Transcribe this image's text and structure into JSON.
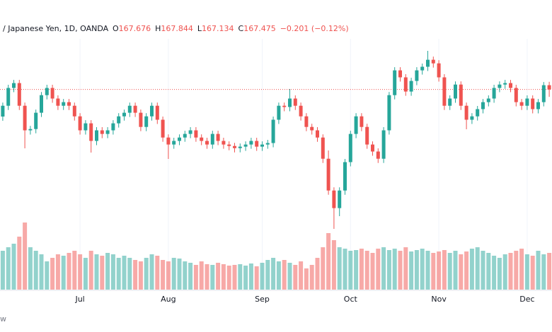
{
  "chart_data": {
    "type": "candlestick",
    "symbol": "/ Japanese Yen, 1D, OANDA",
    "ohlc_header": [
      {
        "label": "O",
        "value": "167.676"
      },
      {
        "label": "H",
        "value": "167.844"
      },
      {
        "label": "L",
        "value": "167.134"
      },
      {
        "label": "C",
        "value": "167.475"
      }
    ],
    "change": "−0.201 (−0.12%)",
    "footer_text": "w",
    "up_color": "#26a69a",
    "down_color": "#ef5350",
    "ylim": [
      160.5,
      170.0
    ],
    "volume_lim": [
      0,
      100
    ],
    "xlim": [
      -0.5,
      99.5
    ],
    "xticks": [
      {
        "value": 14,
        "label": "Jul"
      },
      {
        "value": 30,
        "label": "Aug"
      },
      {
        "value": 47,
        "label": "Sep"
      },
      {
        "value": 63,
        "label": "Oct"
      },
      {
        "value": 79,
        "label": "Nov"
      },
      {
        "value": 95,
        "label": "Dec"
      }
    ],
    "grid": true,
    "open": [
      166.2,
      166.71,
      167.55,
      167.78,
      166.71,
      165.55,
      165.61,
      166.38,
      167.21,
      167.55,
      167.05,
      166.71,
      166.88,
      166.71,
      166.21,
      165.55,
      165.88,
      165.05,
      165.55,
      165.38,
      165.55,
      165.88,
      166.21,
      166.38,
      166.71,
      166.38,
      165.71,
      166.21,
      166.71,
      166.05,
      165.21,
      164.88,
      165.05,
      165.21,
      165.38,
      165.55,
      165.21,
      165.05,
      164.88,
      165.38,
      165.05,
      164.88,
      164.81,
      164.71,
      164.78,
      164.88,
      165.05,
      164.78,
      164.88,
      164.95,
      166.05,
      166.71,
      166.65,
      167.05,
      166.71,
      166.21,
      165.71,
      165.55,
      165.21,
      164.21,
      162.71,
      161.88,
      162.71,
      164.05,
      165.38,
      166.21,
      165.71,
      164.88,
      164.55,
      164.21,
      165.55,
      167.21,
      168.38,
      168.05,
      167.38,
      167.88,
      168.38,
      168.55,
      168.88,
      168.71,
      168.05,
      166.71,
      167.05,
      167.71,
      166.71,
      166.05,
      166.21,
      166.55,
      166.88,
      167.05,
      167.55,
      167.71,
      167.78,
      167.55,
      166.88,
      166.71,
      167.05,
      166.55,
      166.88,
      167.68
    ],
    "high": [
      166.86,
      167.7,
      167.93,
      167.93,
      166.86,
      165.76,
      166.53,
      167.36,
      167.7,
      167.7,
      167.2,
      167.03,
      167.03,
      166.86,
      166.36,
      166.03,
      166.03,
      165.7,
      165.7,
      165.7,
      166.03,
      166.36,
      166.53,
      166.86,
      166.86,
      166.53,
      166.36,
      166.86,
      166.86,
      166.2,
      165.36,
      165.2,
      165.36,
      165.53,
      165.7,
      165.7,
      165.36,
      165.2,
      165.53,
      165.53,
      165.2,
      165.03,
      164.96,
      164.93,
      165.03,
      165.2,
      165.2,
      165.03,
      165.1,
      166.2,
      166.86,
      166.86,
      167.5,
      167.2,
      166.86,
      166.36,
      165.86,
      165.7,
      165.36,
      164.6,
      162.86,
      162.86,
      164.2,
      165.53,
      166.36,
      166.36,
      165.86,
      165.03,
      164.7,
      165.7,
      167.36,
      168.53,
      168.53,
      168.2,
      168.03,
      168.53,
      168.7,
      169.3,
      169.03,
      168.86,
      168.2,
      167.2,
      167.86,
      167.86,
      166.86,
      166.36,
      166.7,
      167.03,
      167.2,
      167.7,
      167.86,
      167.93,
      167.93,
      167.7,
      167.03,
      167.2,
      167.2,
      167.03,
      167.83,
      167.84
    ],
    "low": [
      166.0,
      166.51,
      167.35,
      166.51,
      164.7,
      165.35,
      165.41,
      166.18,
      167.01,
      166.85,
      166.51,
      166.51,
      166.51,
      166.01,
      165.35,
      165.35,
      164.5,
      164.85,
      165.18,
      165.18,
      165.35,
      165.68,
      166.01,
      166.18,
      166.18,
      165.51,
      165.51,
      166.01,
      165.85,
      165.01,
      164.2,
      164.68,
      164.85,
      165.01,
      165.18,
      165.01,
      164.85,
      164.68,
      164.68,
      164.85,
      164.68,
      164.61,
      164.51,
      164.51,
      164.58,
      164.68,
      164.58,
      164.58,
      164.68,
      164.75,
      165.85,
      166.45,
      166.45,
      166.51,
      166.01,
      165.51,
      165.35,
      165.01,
      164.01,
      162.51,
      160.9,
      161.5,
      162.51,
      163.85,
      165.18,
      165.51,
      164.68,
      164.35,
      164.01,
      164.01,
      165.35,
      167.01,
      167.85,
      167.18,
      167.18,
      167.68,
      168.18,
      168.35,
      168.51,
      167.85,
      166.51,
      166.51,
      166.85,
      166.51,
      165.6,
      165.85,
      166.01,
      166.35,
      166.68,
      166.85,
      167.35,
      167.51,
      167.35,
      166.68,
      166.51,
      166.51,
      166.35,
      166.35,
      166.68,
      167.13
    ],
    "close": [
      166.71,
      167.55,
      167.78,
      166.71,
      165.55,
      165.61,
      166.38,
      167.21,
      167.55,
      167.05,
      166.71,
      166.88,
      166.71,
      166.21,
      165.55,
      165.88,
      165.05,
      165.55,
      165.38,
      165.55,
      165.88,
      166.21,
      166.38,
      166.71,
      166.38,
      165.71,
      166.21,
      166.71,
      166.05,
      165.21,
      164.88,
      165.05,
      165.21,
      165.38,
      165.55,
      165.21,
      165.05,
      164.88,
      165.38,
      165.05,
      164.88,
      164.81,
      164.71,
      164.78,
      164.88,
      165.05,
      164.78,
      164.88,
      164.95,
      166.05,
      166.71,
      166.65,
      167.05,
      166.71,
      166.21,
      165.71,
      165.55,
      165.21,
      164.21,
      162.71,
      161.88,
      162.71,
      164.05,
      165.38,
      166.21,
      165.71,
      164.88,
      164.55,
      164.21,
      165.55,
      167.21,
      168.38,
      168.05,
      167.38,
      167.88,
      168.38,
      168.55,
      168.88,
      168.71,
      168.05,
      166.71,
      167.05,
      167.71,
      166.71,
      166.05,
      166.21,
      166.55,
      166.88,
      167.05,
      167.55,
      167.71,
      167.78,
      167.55,
      166.88,
      166.71,
      167.05,
      166.55,
      166.88,
      167.68,
      167.48
    ],
    "volume": [
      55,
      60,
      65,
      75,
      95,
      60,
      55,
      50,
      40,
      45,
      50,
      48,
      52,
      55,
      50,
      45,
      55,
      50,
      48,
      52,
      50,
      45,
      48,
      45,
      42,
      40,
      45,
      50,
      48,
      42,
      40,
      45,
      44,
      40,
      38,
      35,
      40,
      36,
      35,
      38,
      36,
      34,
      35,
      36,
      34,
      37,
      33,
      38,
      42,
      45,
      40,
      42,
      38,
      35,
      40,
      30,
      35,
      45,
      60,
      80,
      70,
      60,
      58,
      55,
      56,
      58,
      55,
      52,
      58,
      60,
      56,
      58,
      55,
      60,
      54,
      56,
      58,
      55,
      52,
      54,
      56,
      52,
      55,
      50,
      54,
      58,
      60,
      55,
      52,
      48,
      45,
      50,
      52,
      55,
      58,
      50,
      48,
      55,
      50,
      52
    ]
  }
}
